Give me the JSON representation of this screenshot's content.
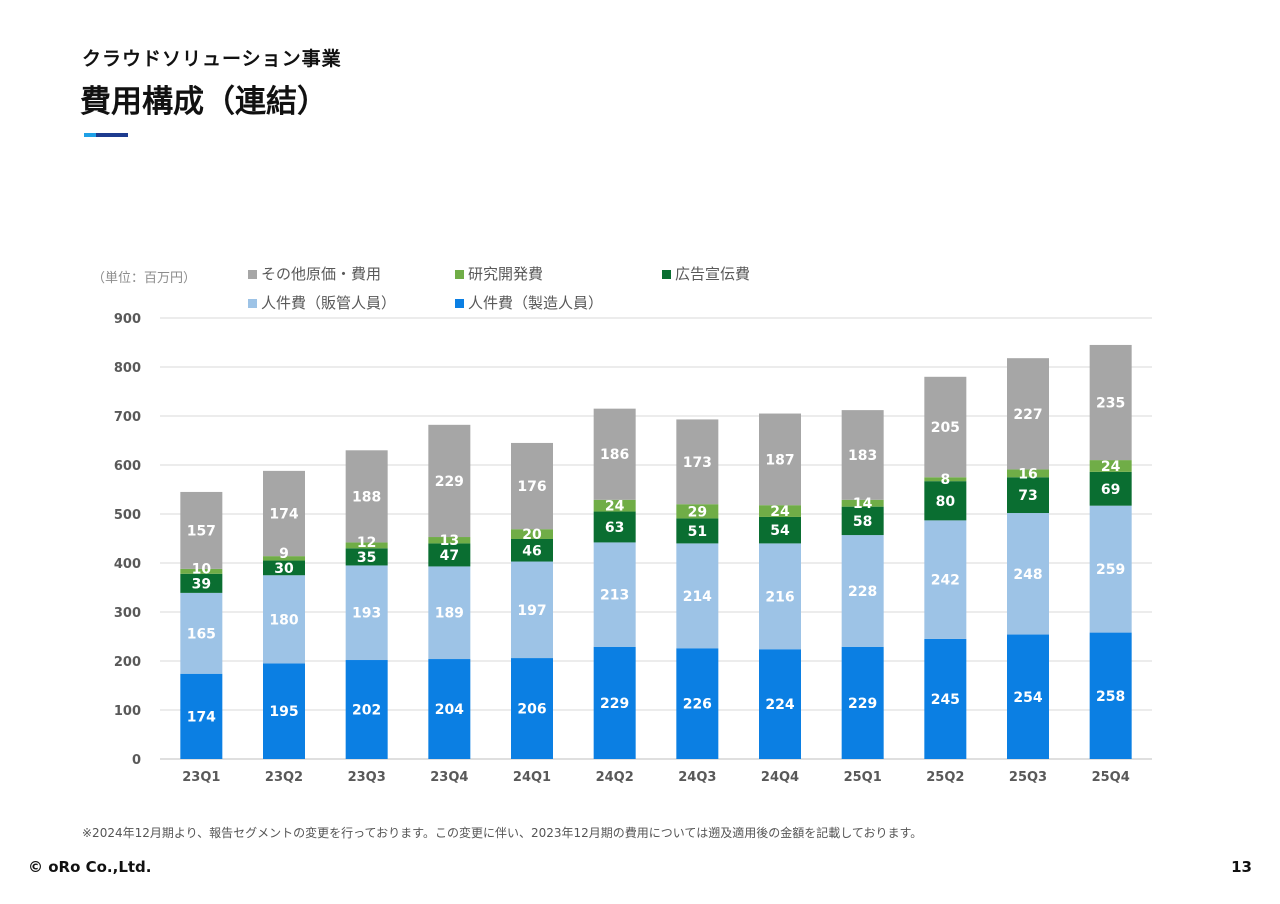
{
  "header": {
    "subtitle": "クラウドソリューション事業",
    "title": "費用構成（連結）"
  },
  "chart_data": {
    "type": "bar",
    "stacked": true,
    "unit_label": "（単位：百万円）",
    "categories": [
      "23Q1",
      "23Q2",
      "23Q3",
      "23Q4",
      "24Q1",
      "24Q2",
      "24Q3",
      "24Q4",
      "25Q1",
      "25Q2",
      "25Q3",
      "25Q4"
    ],
    "series": [
      {
        "name": "人件費（製造人員）",
        "color": "#0b7fe3",
        "label_color": "#ffffff",
        "values": [
          174,
          195,
          202,
          204,
          206,
          229,
          226,
          224,
          229,
          245,
          254,
          258
        ]
      },
      {
        "name": "人件費（販管人員）",
        "color": "#9dc3e6",
        "label_color": "#ffffff",
        "values": [
          165,
          180,
          193,
          189,
          197,
          213,
          214,
          216,
          228,
          242,
          248,
          259
        ]
      },
      {
        "name": "広告宣伝費",
        "color": "#0a6e31",
        "label_color": "#ffffff",
        "values": [
          39,
          30,
          35,
          47,
          46,
          63,
          51,
          54,
          58,
          80,
          73,
          69
        ]
      },
      {
        "name": "研究開発費",
        "color": "#70ad47",
        "label_color": "#ffffff",
        "values": [
          10,
          9,
          12,
          13,
          20,
          24,
          29,
          24,
          14,
          8,
          16,
          24
        ]
      },
      {
        "name": "その他原価・費用",
        "color": "#a6a6a6",
        "label_color": "#ffffff",
        "values": [
          157,
          174,
          188,
          229,
          176,
          186,
          173,
          187,
          183,
          205,
          227,
          235
        ]
      }
    ],
    "legend_order": [
      4,
      3,
      2,
      1,
      0
    ],
    "ylim": [
      0,
      900
    ],
    "yticks": [
      0,
      100,
      200,
      300,
      400,
      500,
      600,
      700,
      800,
      900
    ],
    "grid": true,
    "legend_position": "top"
  },
  "footer": {
    "note": "※2024年12月期より、報告セグメントの変更を行っております。この変更に伴い、2023年12月期の費用については遡及適用後の金額を記載しております。",
    "logo": "© oRo Co.,Ltd.",
    "page": "13"
  }
}
